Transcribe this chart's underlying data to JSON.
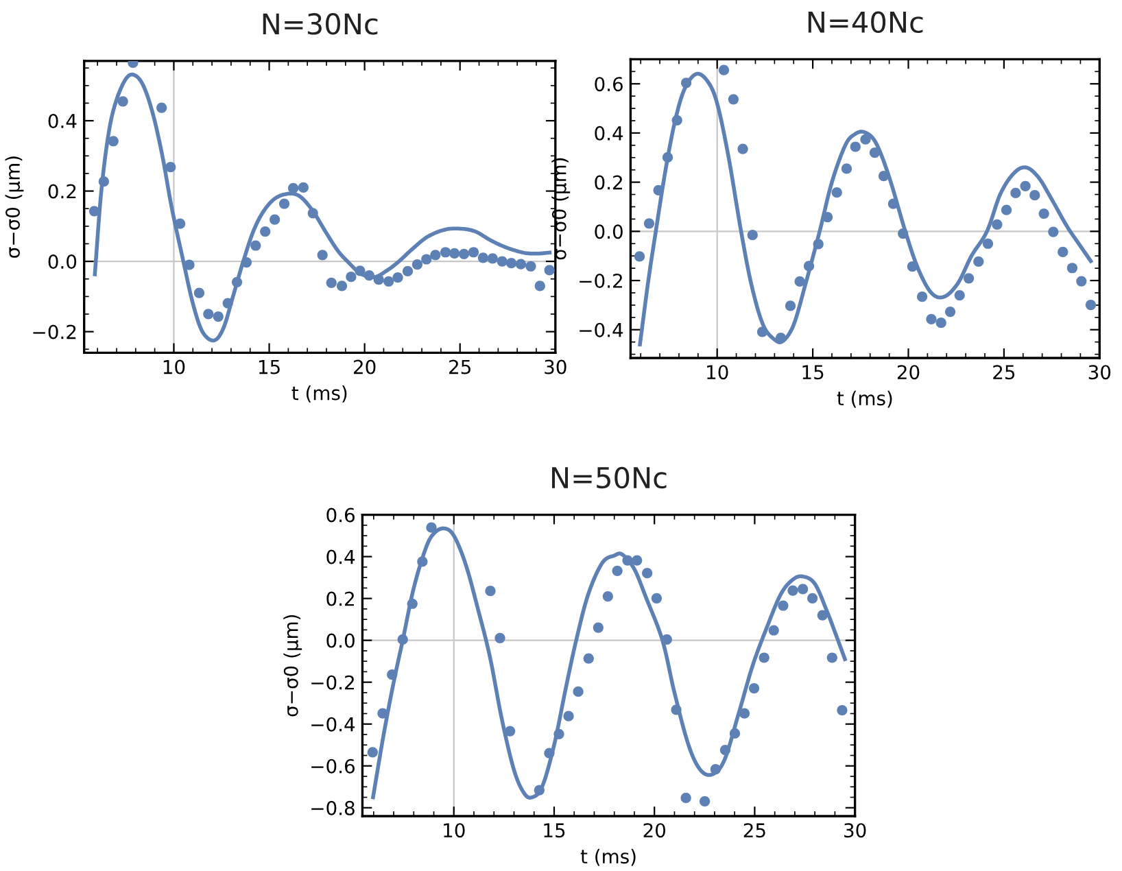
{
  "chart_data": [
    {
      "type": "scatter",
      "title": "N=30Nc",
      "xlabel": "t (ms)",
      "ylabel": "σ−σ0 (μm)",
      "xlim": [
        5.3,
        30
      ],
      "ylim": [
        -0.26,
        0.57
      ],
      "xticks": [
        10,
        15,
        20,
        25,
        30
      ],
      "yticks": [
        {
          "value": -0.2,
          "label": "−0.2"
        },
        {
          "value": 0,
          "label": "0.0"
        },
        0.2,
        0.4
      ],
      "grid": false,
      "ref_lines": [
        {
          "axis": "x",
          "value": 10,
          "color": "#c8c8c8"
        },
        {
          "axis": "y",
          "value": 0,
          "color": "#c8c8c8"
        }
      ],
      "series": [
        {
          "color": "#5e81b5",
          "marker": "circle",
          "x": [
            5.83,
            6.33,
            6.83,
            7.33,
            7.86,
            9.36,
            9.83,
            10.33,
            10.81,
            11.33,
            11.81,
            12.33,
            12.83,
            13.31,
            13.81,
            14.29,
            14.79,
            15.29,
            15.79,
            16.26,
            16.79,
            17.29,
            17.79,
            18.26,
            18.81,
            19.29,
            19.76,
            20.24,
            20.74,
            21.26,
            21.74,
            22.26,
            22.76,
            23.24,
            23.71,
            24.24,
            24.71,
            25.21,
            25.71,
            26.21,
            26.71,
            27.21,
            27.69,
            28.19,
            28.71,
            29.19,
            29.69
          ],
          "values": [
            0.143,
            0.227,
            0.342,
            0.455,
            0.565,
            0.437,
            0.268,
            0.107,
            -0.01,
            -0.09,
            -0.15,
            -0.157,
            -0.119,
            -0.059,
            -0.003,
            0.045,
            0.085,
            0.119,
            0.164,
            0.208,
            0.21,
            0.137,
            0.018,
            -0.061,
            -0.07,
            -0.044,
            -0.027,
            -0.04,
            -0.052,
            -0.057,
            -0.046,
            -0.028,
            -0.009,
            0.006,
            0.018,
            0.026,
            0.023,
            0.021,
            0.026,
            0.01,
            0.008,
            0.0,
            -0.005,
            -0.008,
            -0.014,
            -0.07,
            -0.025
          ]
        },
        {
          "type": "line",
          "color": "#5e81b5",
          "line_style": "solid",
          "x": [
            5.86,
            6.2,
            6.6,
            7.0,
            7.5,
            7.93,
            8.4,
            8.9,
            9.4,
            9.9,
            10.5,
            11.0,
            11.5,
            12.1,
            12.6,
            13.1,
            13.64,
            14.2,
            14.8,
            15.5,
            16.43,
            17.2,
            18.0,
            18.6,
            19.1,
            19.8,
            20.5,
            21.2,
            21.8,
            22.5,
            23.3,
            24.2,
            25.0,
            25.8,
            26.6,
            27.4,
            28.3,
            29.0,
            29.7
          ],
          "values": [
            -0.037,
            0.2,
            0.37,
            0.46,
            0.52,
            0.53,
            0.5,
            0.42,
            0.3,
            0.15,
            0.0,
            -0.12,
            -0.2,
            -0.225,
            -0.19,
            -0.1,
            0.0,
            0.09,
            0.15,
            0.185,
            0.19,
            0.15,
            0.08,
            0.03,
            0.0,
            -0.035,
            -0.045,
            -0.025,
            0.0,
            0.035,
            0.07,
            0.09,
            0.093,
            0.085,
            0.06,
            0.04,
            0.025,
            0.022,
            0.025
          ]
        }
      ]
    },
    {
      "type": "scatter",
      "title": "N=40Nc",
      "xlabel": "t (ms)",
      "ylabel": "σ−σ0 (μm)",
      "xlim": [
        5.47,
        30
      ],
      "ylim": [
        -0.515,
        0.7
      ],
      "xticks": [
        10,
        15,
        20,
        25,
        30
      ],
      "yticks": [
        {
          "value": -0.4,
          "label": "−0.4"
        },
        {
          "value": -0.2,
          "label": "−0.2"
        },
        {
          "value": 0,
          "label": "0.0"
        },
        0.2,
        0.4,
        0.6
      ],
      "grid": false,
      "ref_lines": [
        {
          "axis": "x",
          "value": 10,
          "color": "#c8c8c8"
        },
        {
          "axis": "y",
          "value": 0,
          "color": "#c8c8c8"
        }
      ],
      "series": [
        {
          "color": "#5e81b5",
          "marker": "circle",
          "x": [
            5.94,
            6.44,
            6.93,
            7.41,
            7.9,
            8.38,
            10.35,
            10.85,
            11.34,
            11.85,
            12.36,
            13.33,
            13.83,
            14.32,
            14.8,
            15.29,
            15.77,
            16.26,
            16.77,
            17.23,
            17.76,
            18.24,
            18.71,
            19.21,
            19.72,
            20.21,
            20.72,
            21.2,
            21.71,
            22.19,
            22.68,
            23.16,
            23.67,
            24.16,
            24.64,
            25.13,
            25.61,
            26.12,
            26.61,
            27.09,
            27.58,
            28.08,
            28.57,
            29.05,
            29.54
          ],
          "values": [
            -0.102,
            0.032,
            0.167,
            0.301,
            0.452,
            0.604,
            0.656,
            0.537,
            0.335,
            -0.015,
            -0.409,
            -0.433,
            -0.303,
            -0.204,
            -0.141,
            -0.052,
            0.058,
            0.158,
            0.255,
            0.344,
            0.374,
            0.32,
            0.225,
            0.112,
            -0.009,
            -0.143,
            -0.266,
            -0.357,
            -0.372,
            -0.327,
            -0.26,
            -0.191,
            -0.123,
            -0.05,
            0.028,
            0.087,
            0.156,
            0.184,
            0.147,
            0.072,
            -0.002,
            -0.084,
            -0.149,
            -0.203,
            -0.299
          ]
        },
        {
          "type": "line",
          "color": "#5e81b5",
          "line_style": "solid",
          "x": [
            5.96,
            6.4,
            6.79,
            7.3,
            7.8,
            8.3,
            8.91,
            9.5,
            10.0,
            10.6,
            11.25,
            11.8,
            12.4,
            13.0,
            13.44,
            14.0,
            14.6,
            15.36,
            16.0,
            16.7,
            17.2,
            17.71,
            18.3,
            19.0,
            19.84,
            20.5,
            21.2,
            21.87,
            22.6,
            23.3,
            24.11,
            24.8,
            25.5,
            26.14,
            26.8,
            27.5,
            28.3,
            29.0,
            29.54
          ],
          "values": [
            -0.46,
            -0.2,
            0.0,
            0.25,
            0.45,
            0.58,
            0.64,
            0.61,
            0.52,
            0.3,
            0.0,
            -0.22,
            -0.38,
            -0.44,
            -0.446,
            -0.38,
            -0.22,
            0.0,
            0.2,
            0.35,
            0.395,
            0.403,
            0.36,
            0.22,
            0.0,
            -0.15,
            -0.25,
            -0.266,
            -0.21,
            -0.1,
            0.0,
            0.15,
            0.235,
            0.26,
            0.22,
            0.13,
            0.02,
            -0.06,
            -0.121
          ]
        }
      ]
    },
    {
      "type": "scatter",
      "title": "N=50Nc",
      "xlabel": "t (ms)",
      "ylabel": "σ−σ0 (μm)",
      "xlim": [
        5.44,
        30
      ],
      "ylim": [
        -0.84,
        0.6
      ],
      "xticks": [
        10,
        15,
        20,
        25,
        30
      ],
      "yticks": [
        {
          "value": -0.8,
          "label": "−0.8"
        },
        {
          "value": -0.6,
          "label": "−0.6"
        },
        {
          "value": -0.4,
          "label": "−0.4"
        },
        {
          "value": -0.2,
          "label": "−0.2"
        },
        {
          "value": 0,
          "label": "0.0"
        },
        0.2,
        0.4,
        0.6
      ],
      "grid": false,
      "ref_lines": [
        {
          "axis": "x",
          "value": 10,
          "color": "#c8c8c8"
        },
        {
          "axis": "y",
          "value": 0,
          "color": "#c8c8c8"
        }
      ],
      "series": [
        {
          "color": "#5e81b5",
          "marker": "circle",
          "x": [
            5.95,
            6.45,
            6.92,
            7.45,
            7.93,
            8.43,
            8.88,
            11.82,
            12.3,
            12.8,
            14.26,
            14.76,
            15.24,
            15.72,
            16.2,
            16.72,
            17.2,
            17.68,
            18.15,
            18.66,
            19.13,
            19.64,
            20.11,
            20.62,
            21.09,
            21.57,
            22.51,
            23.05,
            23.53,
            24.01,
            24.49,
            24.97,
            25.47,
            25.95,
            26.42,
            26.9,
            27.4,
            27.88,
            28.38,
            28.86,
            29.36
          ],
          "values": [
            -0.535,
            -0.349,
            -0.164,
            0.004,
            0.175,
            0.376,
            0.539,
            0.236,
            0.011,
            -0.434,
            -0.716,
            -0.539,
            -0.448,
            -0.362,
            -0.245,
            -0.087,
            0.061,
            0.21,
            0.332,
            0.382,
            0.382,
            0.321,
            0.201,
            0.004,
            -0.332,
            -0.753,
            -0.769,
            -0.616,
            -0.524,
            -0.445,
            -0.349,
            -0.229,
            -0.083,
            0.048,
            0.166,
            0.238,
            0.245,
            0.201,
            0.12,
            -0.083,
            -0.334
          ]
        },
        {
          "type": "line",
          "color": "#5e81b5",
          "line_style": "solid",
          "x": [
            5.97,
            6.5,
            7.0,
            7.45,
            8.0,
            8.6,
            9.0,
            9.5,
            10.0,
            10.6,
            11.2,
            11.8,
            12.4,
            13.0,
            13.5,
            13.9,
            14.4,
            15.0,
            15.6,
            16.1,
            16.7,
            17.4,
            18.0,
            18.4,
            19.0,
            19.6,
            20.4,
            21.0,
            21.7,
            22.3,
            22.9,
            23.5,
            24.2,
            24.9,
            25.6,
            26.3,
            26.9,
            27.4,
            28.0,
            28.6,
            29.0,
            29.5
          ],
          "values": [
            -0.75,
            -0.45,
            -0.2,
            0.0,
            0.25,
            0.44,
            0.51,
            0.535,
            0.5,
            0.36,
            0.15,
            -0.08,
            -0.38,
            -0.62,
            -0.73,
            -0.75,
            -0.7,
            -0.5,
            -0.22,
            0.0,
            0.22,
            0.37,
            0.405,
            0.41,
            0.34,
            0.2,
            0.0,
            -0.25,
            -0.5,
            -0.62,
            -0.64,
            -0.57,
            -0.35,
            -0.12,
            0.06,
            0.22,
            0.29,
            0.305,
            0.27,
            0.14,
            0.04,
            -0.09
          ]
        }
      ]
    }
  ]
}
